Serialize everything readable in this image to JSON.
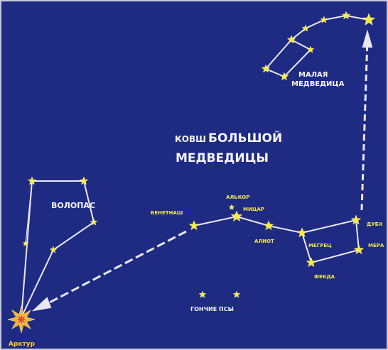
{
  "little_dipper": {
    "line1": "МАЛАЯ",
    "line2": "МЕДВЕДИЦА"
  },
  "big_dipper": {
    "prefix": "КОВШ",
    "line1": "БОЛЬШОЙ",
    "line2": "МЕДВЕДИЦЫ",
    "stars": {
      "benetnash": "БЕНЕТНАШ",
      "alcor": "АЛЬКОР",
      "mizar": "МИЦАР",
      "alioth": "АЛИОТ",
      "megrez": "МЕГРЕЦ",
      "phecda": "ФЕКДА",
      "dubhe": "ДУБХ",
      "merak": "МЕРА"
    }
  },
  "bootes": {
    "name": "ВОЛОПАС",
    "arcturus": "Арктур"
  },
  "canes_venatici": {
    "name": "ГОНЧИЕ ПСЫ"
  }
}
